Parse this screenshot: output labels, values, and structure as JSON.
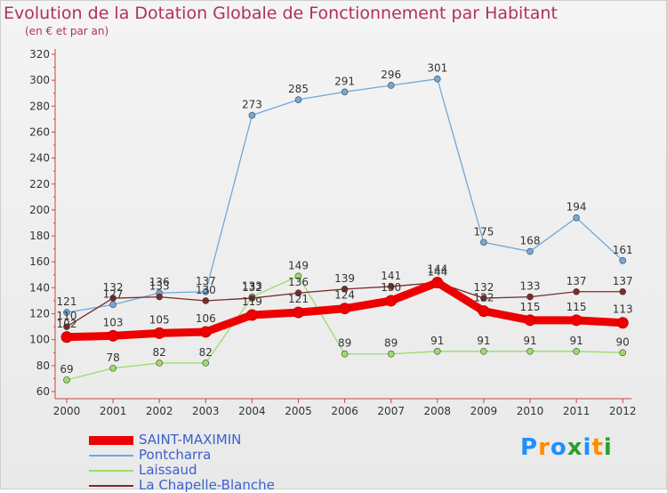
{
  "chart_data": {
    "type": "line",
    "title": "Evolution de la Dotation Globale de Fonctionnement par Habitant",
    "subtitle": "(en € et par an)",
    "categories": [
      "2000",
      "2001",
      "2002",
      "2003",
      "2004",
      "2005",
      "2006",
      "2007",
      "2008",
      "2009",
      "2010",
      "2011",
      "2012"
    ],
    "ylim": [
      60,
      320
    ],
    "yticks": [
      60,
      80,
      100,
      120,
      140,
      160,
      180,
      200,
      220,
      240,
      260,
      280,
      300,
      320
    ],
    "grid": false,
    "legend_position": "bottom-left",
    "series": [
      {
        "name": "SAINT-MAXIMIN",
        "color": "#ee0000",
        "values": [
          102,
          103,
          105,
          106,
          119,
          121,
          124,
          130,
          144,
          122,
          115,
          115,
          113
        ]
      },
      {
        "name": "Pontcharra",
        "color": "#6fa8dc",
        "values": [
          121,
          127,
          136,
          137,
          273,
          285,
          291,
          296,
          301,
          175,
          168,
          194,
          161
        ]
      },
      {
        "name": "Laissaud",
        "color": "#99dd66",
        "values": [
          69,
          78,
          82,
          82,
          133,
          149,
          89,
          89,
          91,
          91,
          91,
          91,
          90
        ]
      },
      {
        "name": "La Chapelle-Blanche",
        "color": "#7a2a2a",
        "values": [
          110,
          132,
          133,
          130,
          132,
          136,
          139,
          141,
          144,
          132,
          133,
          137,
          137
        ]
      }
    ]
  },
  "logo": {
    "text": "Proxiti",
    "colors": [
      "#1e90ff",
      "#ff8c00",
      "#1e90ff",
      "#2ca02c",
      "#1e90ff",
      "#ff8c00",
      "#2ca02c"
    ]
  }
}
